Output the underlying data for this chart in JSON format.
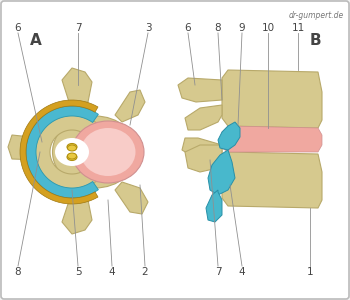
{
  "bg_color": "#f2f2f2",
  "border_color": "#bbbbbb",
  "bone_color": "#d6c98e",
  "bone_edge": "#b8a96a",
  "bone_shadow": "#c4b578",
  "disc_pink": "#f0a8a0",
  "disc_light": "#f8ccc8",
  "annulus_blue": "#4ab8d0",
  "annulus_edge": "#2898b0",
  "ligament_gold": "#d4a020",
  "ligament_edge": "#a07810",
  "nerve_blue": "#48b8cc",
  "nerve_edge": "#2890a8",
  "facet_yellow": "#e8c840",
  "facet_edge": "#b09010",
  "watermark": "dr-gumpert.de",
  "line_color": "#909090",
  "label_color": "#444444",
  "white": "#ffffff"
}
